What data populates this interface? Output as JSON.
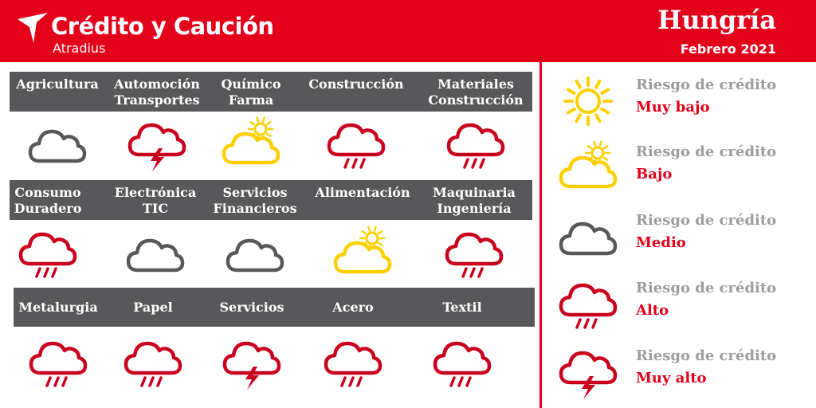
{
  "brand": {
    "name": "Crédito y Caución",
    "sub": "Atradius"
  },
  "report": {
    "country": "Hungría",
    "period": "Febrero 2021"
  },
  "colors": {
    "accent": "#e2001a",
    "band": "#58585a",
    "caption": "#9d9d9d",
    "sun": "#ffd000",
    "cloud_gray": "#58585a",
    "storm": "#c8001e"
  },
  "sectors": [
    {
      "line1": "Agricultura",
      "line2": "",
      "risk": "Medio",
      "icon": "cloud-icon"
    },
    {
      "line1": "Automoción",
      "line2": "Transportes",
      "risk": "Muy alto",
      "icon": "storm-icon"
    },
    {
      "line1": "Químico",
      "line2": "Farma",
      "risk": "Bajo",
      "icon": "sun-cloud-icon"
    },
    {
      "line1": "Construcción",
      "line2": "",
      "risk": "Alto",
      "icon": "rain-icon"
    },
    {
      "line1": "Materiales",
      "line2": "Construcción",
      "risk": "Alto",
      "icon": "rain-icon"
    },
    {
      "line1": "Consumo",
      "line2": "Duradero",
      "risk": "Alto",
      "icon": "rain-icon"
    },
    {
      "line1": "Electrónica",
      "line2": "TIC",
      "risk": "Medio",
      "icon": "cloud-icon"
    },
    {
      "line1": "Servicios",
      "line2": "Financieros",
      "risk": "Medio",
      "icon": "cloud-icon"
    },
    {
      "line1": "Alimentación",
      "line2": "",
      "risk": "Bajo",
      "icon": "sun-cloud-icon"
    },
    {
      "line1": "Maquinaria",
      "line2": "Ingeniería",
      "risk": "Alto",
      "icon": "rain-icon"
    },
    {
      "line1": "Metalurgia",
      "line2": "",
      "risk": "Alto",
      "icon": "rain-icon"
    },
    {
      "line1": "Papel",
      "line2": "",
      "risk": "Alto",
      "icon": "rain-icon"
    },
    {
      "line1": "Servicios",
      "line2": "",
      "risk": "Muy alto",
      "icon": "storm-icon"
    },
    {
      "line1": "Acero",
      "line2": "",
      "risk": "Alto",
      "icon": "rain-icon"
    },
    {
      "line1": "Textil",
      "line2": "",
      "risk": "Alto",
      "icon": "rain-icon"
    }
  ],
  "legend": [
    {
      "caption": "Riesgo de crédito",
      "level": "Muy bajo",
      "icon": "sun-icon"
    },
    {
      "caption": "Riesgo de crédito",
      "level": "Bajo",
      "icon": "sun-cloud-icon"
    },
    {
      "caption": "Riesgo de crédito",
      "level": "Medio",
      "icon": "cloud-icon"
    },
    {
      "caption": "Riesgo de crédito",
      "level": "Alto",
      "icon": "rain-icon"
    },
    {
      "caption": "Riesgo de crédito",
      "level": "Muy alto",
      "icon": "storm-icon"
    }
  ]
}
